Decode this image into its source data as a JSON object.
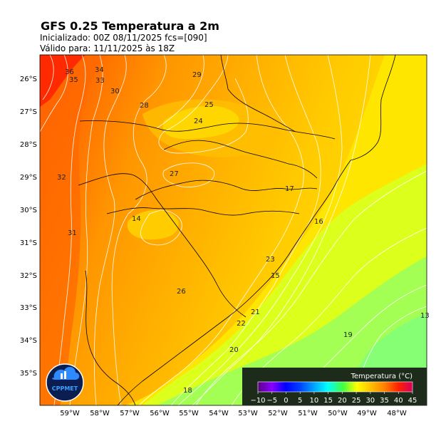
{
  "title": "GFS 0.25 Temperatura a 2m",
  "init_line": "Inicializado: 00Z  08/11/2025    fcs=[090]",
  "valid_line": "Válido para: 11/11/2025 às 18Z",
  "lat_labels": [
    "26°S",
    "27°S",
    "28°S",
    "29°S",
    "30°S",
    "31°S",
    "32°S",
    "33°S",
    "34°S",
    "35°S"
  ],
  "lon_labels": [
    "59°W",
    "58°W",
    "57°W",
    "56°W",
    "55°W",
    "54°W",
    "53°W",
    "52°W",
    "51°W",
    "50°W",
    "49°W",
    "48°W"
  ],
  "colorbar": {
    "title": "Temperatura (°C)",
    "ticks": [
      "−10",
      "−5",
      "0",
      "5",
      "10",
      "15",
      "20",
      "25",
      "30",
      "35",
      "40",
      "45"
    ],
    "min": -10,
    "max": 45
  },
  "contour_labels": [
    "36",
    "35",
    "34",
    "33",
    "32",
    "31",
    "30",
    "29",
    "28",
    "27",
    "26",
    "25",
    "24",
    "23",
    "22",
    "21",
    "20",
    "19",
    "18",
    "17",
    "16",
    "15",
    "14",
    "13"
  ],
  "logo": {
    "text": "CPPMET"
  },
  "colors": {
    "hot": "#ff3a00",
    "warm": "#ff7a00",
    "orange": "#ffa800",
    "yellow": "#ffe100",
    "lime": "#d8ff1c",
    "green": "#8dff6c",
    "colorbar_bg": "#1d2b1a",
    "logo_bg": "#0b1e52"
  }
}
